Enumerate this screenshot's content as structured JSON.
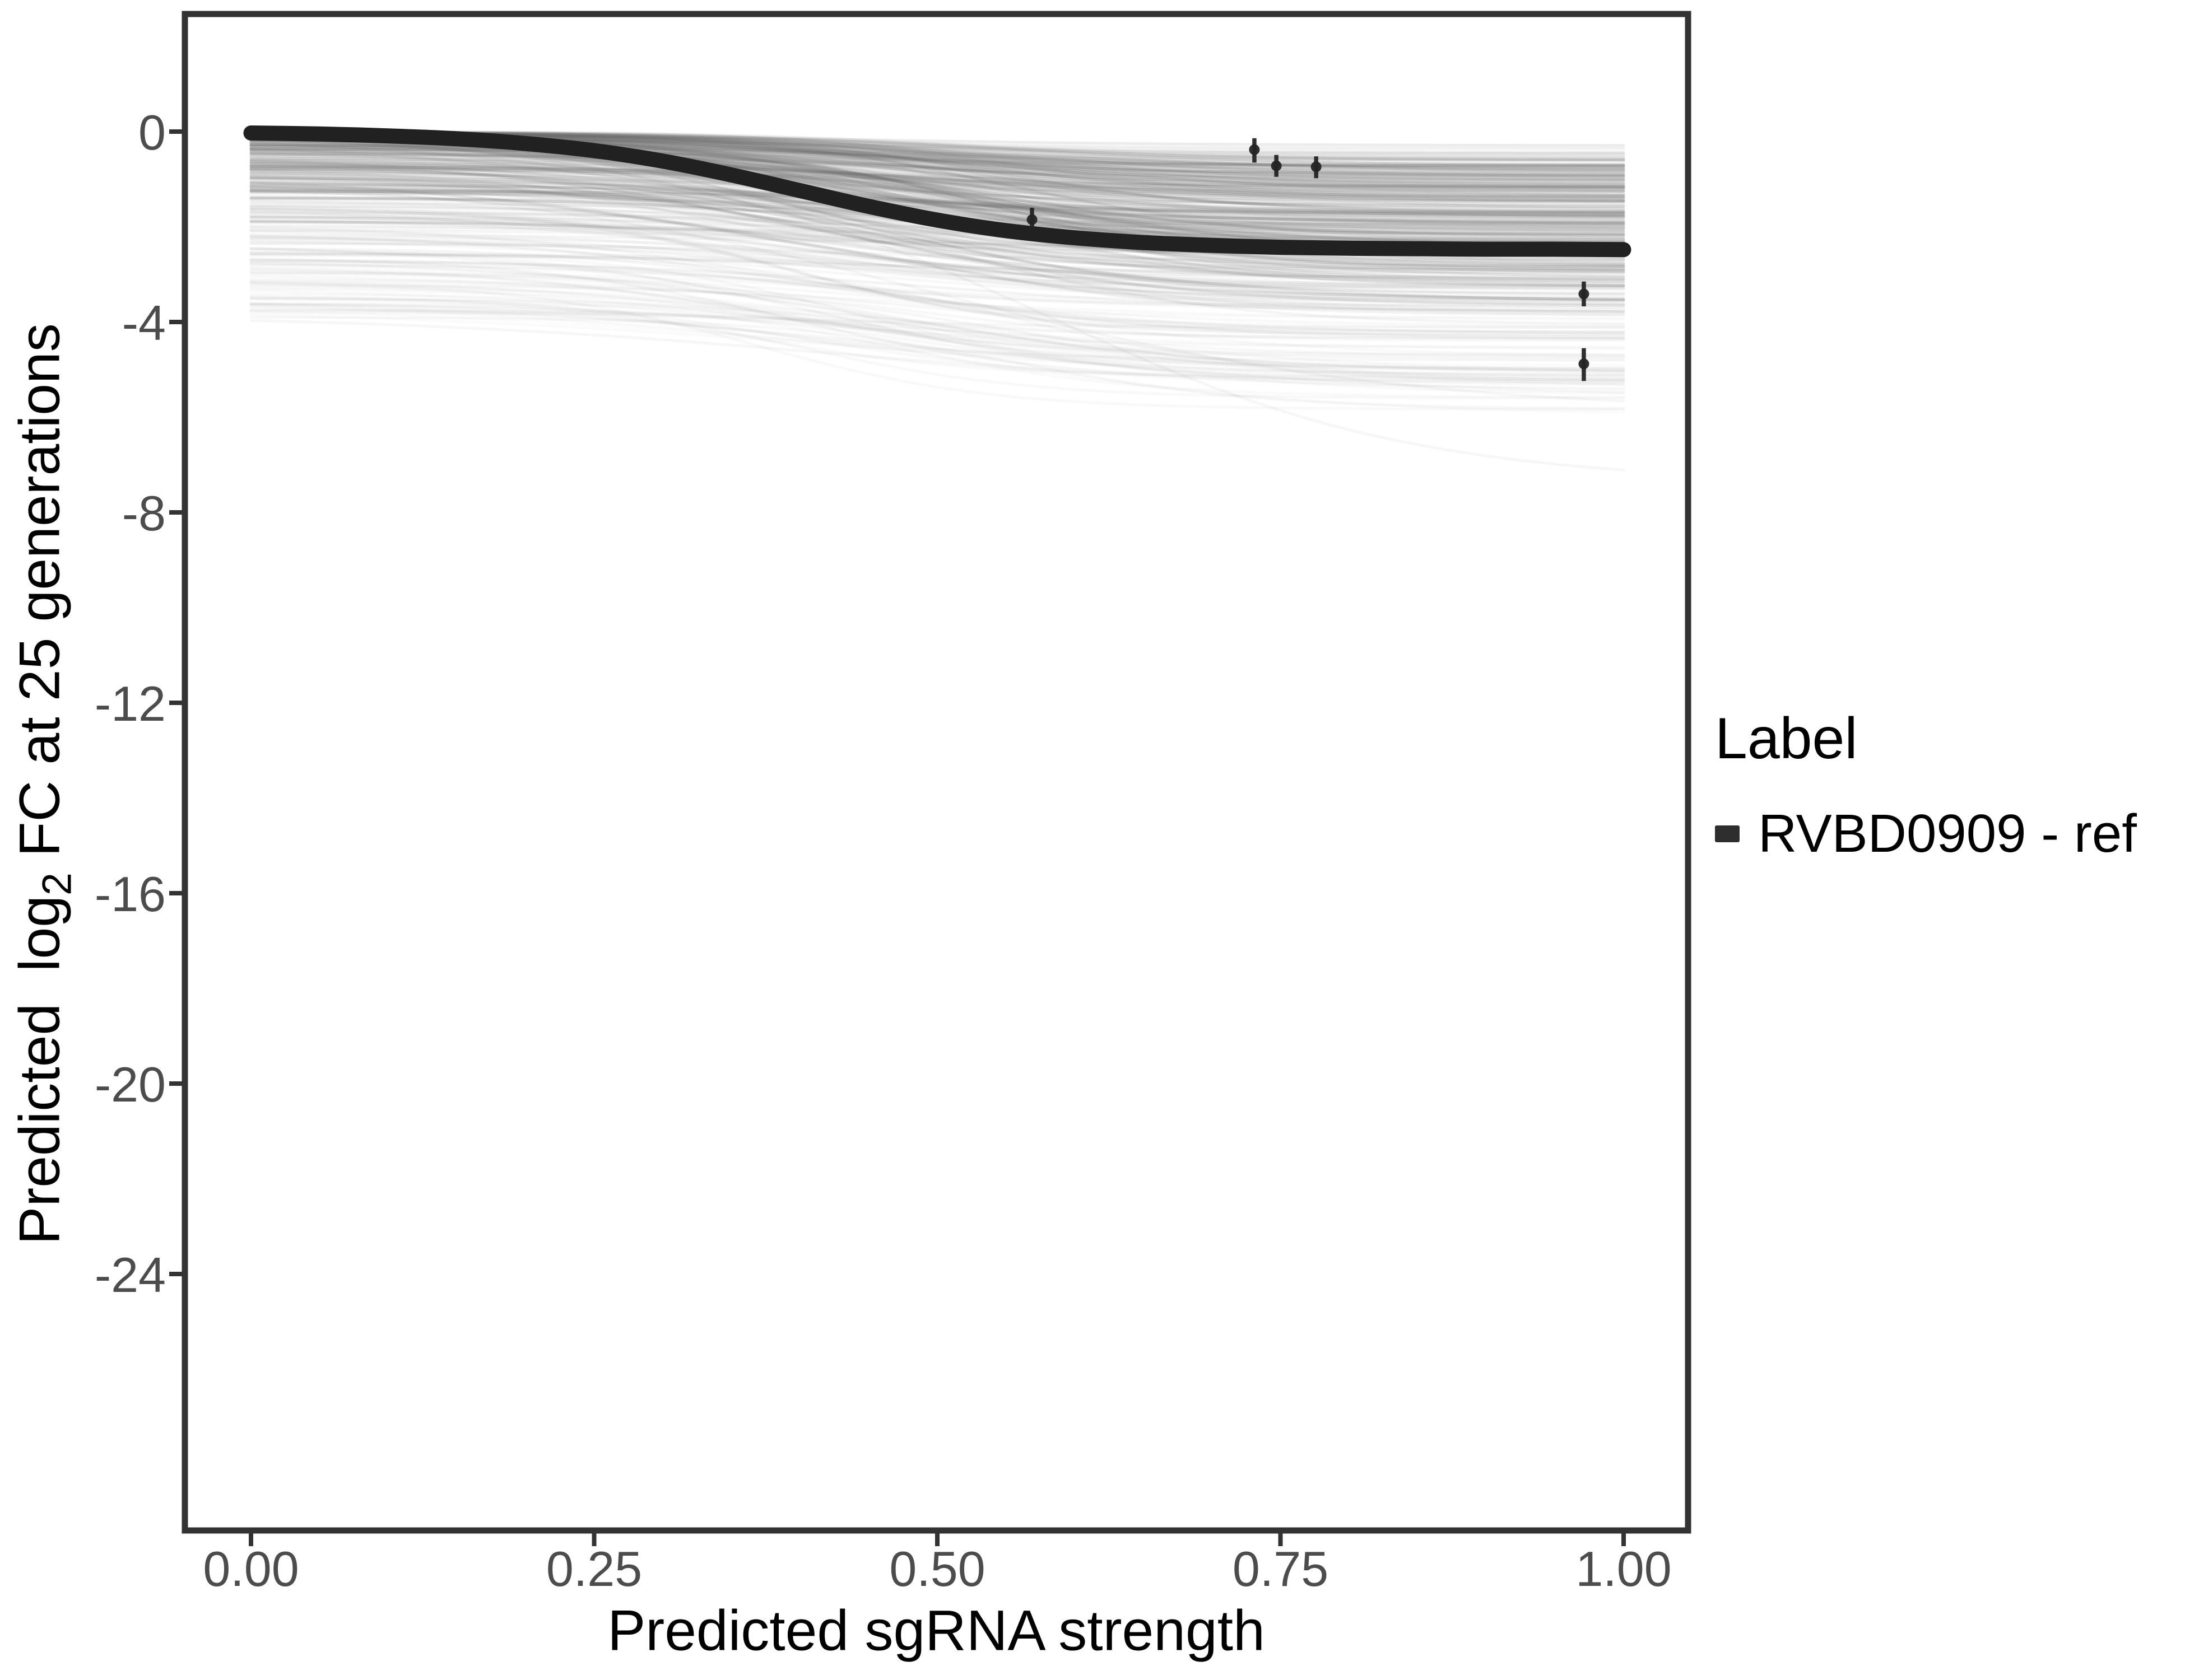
{
  "axes": {
    "x": {
      "title": "Predicted sgRNA strength",
      "tick_labels": [
        "0.00",
        "0.25",
        "0.50",
        "0.75",
        "1.00"
      ],
      "tick_values": [
        0,
        0.25,
        0.5,
        0.75,
        1
      ]
    },
    "y": {
      "title_prefix": "Predicted  log",
      "title_sub": "2",
      "title_suffix": " FC at 25 generations",
      "tick_labels": [
        "0",
        "-4",
        "-8",
        "-12",
        "-16",
        "-20",
        "-24"
      ],
      "tick_values": [
        0,
        -4,
        -8,
        -12,
        -16,
        -20,
        -24
      ]
    }
  },
  "legend": {
    "title": "Label",
    "items": [
      {
        "label": "RVBD0909 - ref",
        "swatch_color": "#2e2e2e"
      }
    ]
  },
  "colors": {
    "background": "#ffffff",
    "panel_border": "#333333",
    "tick_mark": "#333333",
    "tick_label": "#4c4c4c",
    "trend_line": "#212121",
    "point": "#242424",
    "ensemble_line": "#696969"
  },
  "chart_data": {
    "type": "line",
    "title": "",
    "xlabel": "Predicted sgRNA strength",
    "ylabel": "Predicted log2 FC at 25 generations",
    "xlim": [
      -0.048,
      1.047
    ],
    "ylim": [
      -29.4,
      2.47
    ],
    "grid": false,
    "legend_position": "right",
    "legend_title": "Label",
    "x_ticks": [
      0,
      0.25,
      0.5,
      0.75,
      1
    ],
    "y_ticks": [
      0,
      -4,
      -8,
      -12,
      -16,
      -20,
      -24
    ],
    "series": [
      {
        "name": "RVBD0909 - ref",
        "type": "line",
        "x": [
          0,
          0.05,
          0.1,
          0.15,
          0.2,
          0.25,
          0.3,
          0.35,
          0.4,
          0.45,
          0.5,
          0.55,
          0.6,
          0.65,
          0.7,
          0.75,
          0.8,
          0.85,
          0.9,
          0.95,
          1
        ],
        "y": [
          -0.03,
          -0.05,
          -0.09,
          -0.15,
          -0.25,
          -0.4,
          -0.62,
          -0.91,
          -1.24,
          -1.57,
          -1.86,
          -2.08,
          -2.23,
          -2.33,
          -2.39,
          -2.43,
          -2.45,
          -2.46,
          -2.47,
          -2.47,
          -2.48
        ]
      }
    ],
    "points": [
      {
        "x": 0.569,
        "y": -1.85,
        "ymin": -2.03,
        "ymax": -1.6
      },
      {
        "x": 0.731,
        "y": -0.38,
        "ymin": -0.65,
        "ymax": -0.14
      },
      {
        "x": 0.747,
        "y": -0.72,
        "ymin": -0.95,
        "ymax": -0.49
      },
      {
        "x": 0.776,
        "y": -0.74,
        "ymin": -0.98,
        "ymax": -0.52
      },
      {
        "x": 0.971,
        "y": -3.41,
        "ymin": -3.67,
        "ymax": -3.15
      },
      {
        "x": 0.971,
        "y": -4.88,
        "ymin": -5.24,
        "ymax": -4.55
      }
    ],
    "ensemble": {
      "count": 360,
      "seed": 42,
      "color": "#696969",
      "start_range": [
        0,
        -3.9
      ],
      "typical_end_range": [
        -0.3,
        -5.8
      ],
      "outliers": [
        {
          "start": -0.35,
          "end": -7.4,
          "midpoint": 0.58,
          "steepness": 7.5
        },
        {
          "start": -0.9,
          "end": -5.9,
          "midpoint": 0.5,
          "steepness": 6
        },
        {
          "start": -2.3,
          "end": -5.4,
          "midpoint": 0.46,
          "steepness": 6.5
        },
        {
          "start": -3.85,
          "end": -5.45,
          "midpoint": 0.42,
          "steepness": 6
        },
        {
          "start": -3.5,
          "end": -5.6,
          "midpoint": 0.5,
          "steepness": 5.5
        }
      ]
    }
  }
}
